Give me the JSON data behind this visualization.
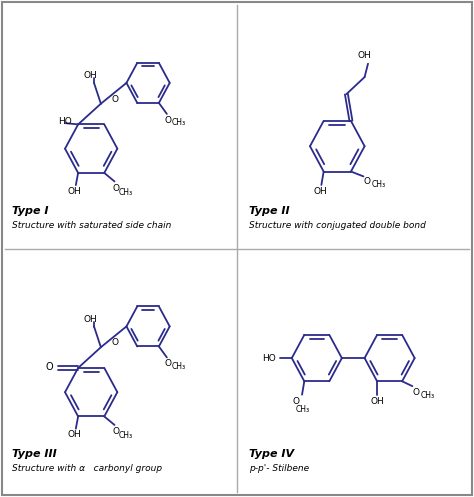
{
  "figsize": [
    4.74,
    4.97
  ],
  "dpi": 100,
  "background": "#ffffff",
  "border_color": "#aaaaaa",
  "line_color": "#2b2b8c",
  "text_color": "#000000",
  "panels": [
    {
      "title": "Type I",
      "subtitle": "Structure with saturated side chain"
    },
    {
      "title": "Type II",
      "subtitle": "Structure with conjugated double bond"
    },
    {
      "title": "Type III",
      "subtitle": "Structure with α   carbonyl group"
    },
    {
      "title": "Type IV",
      "subtitle": "p-p'- Stilbene"
    }
  ]
}
